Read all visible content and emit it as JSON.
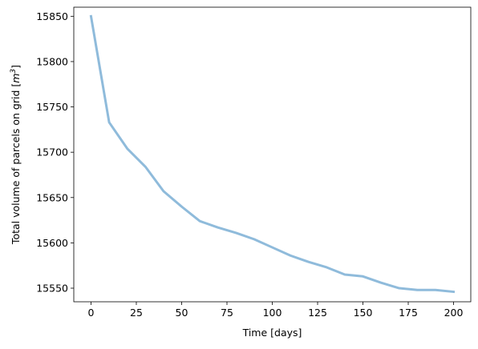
{
  "chart_data": {
    "type": "line",
    "title": "",
    "xlabel": "Time [days]",
    "ylabel_prefix": "Total volume of parcels on grid [",
    "ylabel_unit_base": "m",
    "ylabel_unit_exp": "3",
    "ylabel_suffix": "]",
    "xlim": [
      -9.5,
      209.5
    ],
    "ylim": [
      15535,
      15860
    ],
    "xticks": [
      0,
      25,
      50,
      75,
      100,
      125,
      150,
      175,
      200
    ],
    "yticks": [
      15550,
      15600,
      15650,
      15700,
      15750,
      15800,
      15850
    ],
    "grid": false,
    "legend": false,
    "series": [
      {
        "color": "#8fbbdb",
        "x": [
          0,
          10,
          20,
          30,
          40,
          50,
          60,
          70,
          80,
          90,
          100,
          110,
          120,
          130,
          140,
          150,
          160,
          170,
          180,
          190,
          200
        ],
        "y": [
          15850,
          15733,
          15704,
          15684,
          15657,
          15640,
          15624,
          15617,
          15611,
          15604,
          15595,
          15586,
          15579,
          15573,
          15565,
          15563,
          15556,
          15550,
          15548,
          15548,
          15546
        ]
      }
    ]
  }
}
